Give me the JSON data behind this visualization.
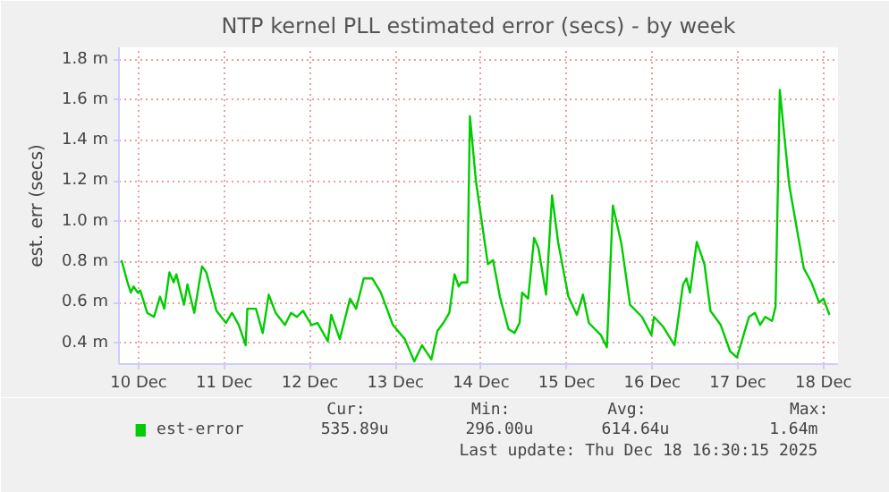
{
  "chart_data": {
    "type": "line",
    "title": "NTP kernel PLL estimated error (secs) - by week",
    "ylabel": "est. err (secs)",
    "xlim": [
      "2025-12-10T06:29",
      "2025-12-18T16:05"
    ],
    "ylim": [
      0.297,
      1.86
    ],
    "xticks": [
      {
        "value": "2025-12-10T12:00",
        "label": "10 Dec"
      },
      {
        "value": "2025-12-11T12:00",
        "label": "11 Dec"
      },
      {
        "value": "2025-12-12T12:00",
        "label": "12 Dec"
      },
      {
        "value": "2025-12-13T12:00",
        "label": "13 Dec"
      },
      {
        "value": "2025-12-14T12:00",
        "label": "14 Dec"
      },
      {
        "value": "2025-12-15T12:00",
        "label": "15 Dec"
      },
      {
        "value": "2025-12-16T12:00",
        "label": "16 Dec"
      },
      {
        "value": "2025-12-17T12:00",
        "label": "17 Dec"
      },
      {
        "value": "2025-12-18T12:00",
        "label": "18 Dec"
      }
    ],
    "yticks": [
      {
        "value": 0.4,
        "label": "0.4 m"
      },
      {
        "value": 0.6,
        "label": "0.6 m"
      },
      {
        "value": 0.8,
        "label": "0.8 m"
      },
      {
        "value": 1.0,
        "label": "1.0 m"
      },
      {
        "value": 1.2,
        "label": "1.2 m"
      },
      {
        "value": 1.4,
        "label": "1.4 m"
      },
      {
        "value": 1.6,
        "label": "1.6 m"
      },
      {
        "value": 1.8,
        "label": "1.8 m"
      }
    ],
    "grid": true,
    "legend": "bottom left",
    "marker": "none",
    "line_style": "solid",
    "x": [
      "2025-12-10T07:12",
      "2025-12-10T08:53",
      "2025-12-10T09:50",
      "2025-12-10T10:34",
      "2025-12-10T11:46",
      "2025-12-10T12:29",
      "2025-12-10T14:24",
      "2025-12-10T16:19",
      "2025-12-10T18:00",
      "2025-12-10T19:12",
      "2025-12-10T20:38",
      "2025-12-10T21:50",
      "2025-12-10T22:34",
      "2025-12-11T00:43",
      "2025-12-11T01:41",
      "2025-12-11T03:36",
      "2025-12-11T05:46",
      "2025-12-11T06:58",
      "2025-12-11T09:50",
      "2025-12-11T12:29",
      "2025-12-11T14:10",
      "2025-12-11T16:05",
      "2025-12-11T18:00",
      "2025-12-11T18:29",
      "2025-12-11T20:53",
      "2025-12-11T22:48",
      "2025-12-12T00:29",
      "2025-12-12T02:24",
      "2025-12-12T05:02",
      "2025-12-12T06:43",
      "2025-12-12T08:24",
      "2025-12-12T10:05",
      "2025-12-12T12:29",
      "2025-12-12T14:10",
      "2025-12-12T17:02",
      "2025-12-12T18:00",
      "2025-12-12T20:24",
      "2025-12-12T23:17",
      "2025-12-13T00:58",
      "2025-12-13T03:07",
      "2025-12-13T05:31",
      "2025-12-13T07:55",
      "2025-12-13T11:17",
      "2025-12-13T14:38",
      "2025-12-13T17:17",
      "2025-12-13T19:26",
      "2025-12-13T22:05",
      "2025-12-13T23:46",
      "2025-12-14T01:26",
      "2025-12-14T03:07",
      "2025-12-14T04:34",
      "2025-12-14T05:46",
      "2025-12-14T06:29",
      "2025-12-14T08:10",
      "2025-12-14T08:53",
      "2025-12-14T10:34",
      "2025-12-14T13:55",
      "2025-12-14T15:22",
      "2025-12-14T17:17",
      "2025-12-14T19:41",
      "2025-12-14T21:22",
      "2025-12-14T22:48",
      "2025-12-14T23:31",
      "2025-12-15T01:12",
      "2025-12-15T02:53",
      "2025-12-15T04:05",
      "2025-12-15T06:14",
      "2025-12-15T07:55",
      "2025-12-15T09:36",
      "2025-12-15T12:29",
      "2025-12-15T14:53",
      "2025-12-15T16:34",
      "2025-12-15T18:14",
      "2025-12-15T21:36",
      "2025-12-15T23:17",
      "2025-12-16T00:58",
      "2025-12-16T03:22",
      "2025-12-16T05:46",
      "2025-12-16T09:07",
      "2025-12-16T11:46",
      "2025-12-16T12:29",
      "2025-12-16T15:07",
      "2025-12-16T18:14",
      "2025-12-16T20:38",
      "2025-12-16T21:36",
      "2025-12-16T22:34",
      "2025-12-17T00:29",
      "2025-12-17T02:38",
      "2025-12-17T04:19",
      "2025-12-17T07:12",
      "2025-12-17T09:50",
      "2025-12-17T11:46",
      "2025-12-17T13:26",
      "2025-12-17T15:07",
      "2025-12-17T16:48",
      "2025-12-17T18:14",
      "2025-12-17T19:41",
      "2025-12-17T21:36",
      "2025-12-17T22:34",
      "2025-12-17T23:46",
      "2025-12-18T02:24",
      "2025-12-18T06:29",
      "2025-12-18T08:38",
      "2025-12-18T10:48",
      "2025-12-18T12:00",
      "2025-12-18T13:41"
    ],
    "series": [
      {
        "name": "est-error",
        "color": "#00cc00",
        "values": [
          0.81,
          0.7,
          0.65,
          0.68,
          0.65,
          0.66,
          0.55,
          0.53,
          0.63,
          0.57,
          0.75,
          0.7,
          0.74,
          0.59,
          0.69,
          0.55,
          0.78,
          0.75,
          0.56,
          0.5,
          0.55,
          0.49,
          0.39,
          0.57,
          0.57,
          0.45,
          0.64,
          0.55,
          0.49,
          0.55,
          0.53,
          0.56,
          0.49,
          0.5,
          0.41,
          0.54,
          0.42,
          0.62,
          0.57,
          0.72,
          0.72,
          0.65,
          0.49,
          0.42,
          0.31,
          0.39,
          0.32,
          0.46,
          0.5,
          0.55,
          0.74,
          0.68,
          0.7,
          0.7,
          1.52,
          1.2,
          0.79,
          0.81,
          0.63,
          0.47,
          0.45,
          0.5,
          0.65,
          0.62,
          0.92,
          0.87,
          0.64,
          1.13,
          0.9,
          0.63,
          0.54,
          0.64,
          0.5,
          0.44,
          0.38,
          1.08,
          0.89,
          0.59,
          0.53,
          0.44,
          0.53,
          0.48,
          0.39,
          0.69,
          0.72,
          0.65,
          0.9,
          0.79,
          0.56,
          0.49,
          0.36,
          0.33,
          0.43,
          0.53,
          0.55,
          0.49,
          0.53,
          0.51,
          0.58,
          1.65,
          1.18,
          0.77,
          0.7,
          0.6,
          0.62,
          0.54
        ]
      }
    ],
    "annotations": [
      "Cur:",
      "535.89u",
      "Min:",
      "296.00u",
      "Avg:",
      "614.64u",
      "Max:",
      "1.64m",
      "Last update: Thu Dec 18 16:30:15 2025"
    ]
  }
}
